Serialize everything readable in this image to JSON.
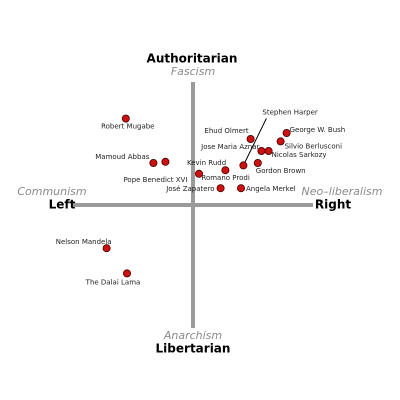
{
  "chart_data": {
    "type": "scatter",
    "top_label": "Authoritarian",
    "top_sublabel": "Fascism",
    "bottom_label": "Libertarian",
    "bottom_sublabel": "Anarchism",
    "left_label": "Left",
    "left_sublabel": "Communism",
    "right_label": "Right",
    "right_sublabel": "Neo–liberalism",
    "xlim": [
      -10,
      10
    ],
    "ylim": [
      -10,
      10
    ],
    "color": "#cc1111",
    "points": [
      {
        "label": "Robert Mugabe",
        "x": -5.6,
        "y": 7.2
      },
      {
        "label": "Mamoud Abbas",
        "x": -3.3,
        "y": 3.5
      },
      {
        "label": "Pope Benedict XVI",
        "x": -2.3,
        "y": 3.6
      },
      {
        "label": "Kevin Rudd",
        "x": 0.5,
        "y": 2.6
      },
      {
        "label": "Romano Prodi",
        "x": 2.7,
        "y": 2.9
      },
      {
        "label": "José Zapatero",
        "x": 2.3,
        "y": 1.4
      },
      {
        "label": "Angela Merkel",
        "x": 4.0,
        "y": 1.4
      },
      {
        "label": "Ehud Olmert",
        "x": 4.8,
        "y": 5.5
      },
      {
        "label": "Stephen Harper",
        "x": 4.2,
        "y": 3.3
      },
      {
        "label": "Jose Maria Aznar",
        "x": 5.7,
        "y": 4.5
      },
      {
        "label": "Nicolas Sarkozy",
        "x": 6.3,
        "y": 4.5
      },
      {
        "label": "Gordon Brown",
        "x": 5.4,
        "y": 3.5
      },
      {
        "label": "George W. Bush",
        "x": 7.8,
        "y": 6.0
      },
      {
        "label": "Silvio Berlusconi",
        "x": 7.3,
        "y": 5.3
      },
      {
        "label": "Nelson Mandela",
        "x": -7.2,
        "y": -3.6
      },
      {
        "label": "The Dalai Lama",
        "x": -5.5,
        "y": -5.7
      }
    ]
  }
}
